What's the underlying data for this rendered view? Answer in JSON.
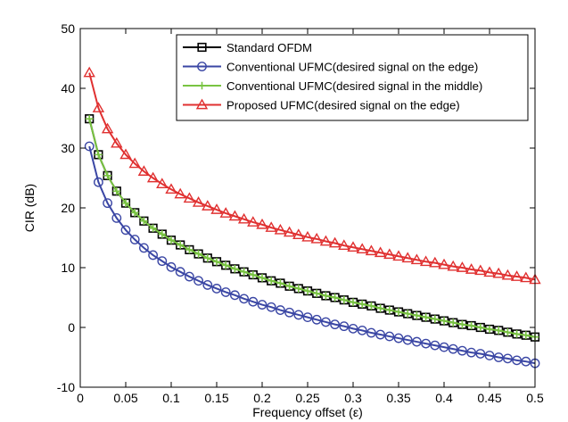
{
  "chart_data": {
    "type": "line",
    "title": "",
    "xlabel": "Frequency offset (ε)",
    "ylabel": "CIR (dB)",
    "xlim": [
      0,
      0.5
    ],
    "ylim": [
      -10,
      50
    ],
    "xticks": [
      0,
      0.05,
      0.1,
      0.15,
      0.2,
      0.25,
      0.3,
      0.35,
      0.4,
      0.45,
      0.5
    ],
    "xtick_labels": [
      "0",
      "0.05",
      "0.1",
      "0.15",
      "0.2",
      "0.25",
      "0.3",
      "0.35",
      "0.4",
      "0.45",
      "0.5"
    ],
    "yticks": [
      -10,
      0,
      10,
      20,
      30,
      40,
      50
    ],
    "ytick_labels": [
      "-10",
      "0",
      "10",
      "20",
      "30",
      "40",
      "50"
    ],
    "grid": false,
    "legend_position": "top-right",
    "x": [
      0.01,
      0.02,
      0.03,
      0.04,
      0.05,
      0.06,
      0.07,
      0.08,
      0.09,
      0.1,
      0.11,
      0.12,
      0.13,
      0.14,
      0.15,
      0.16,
      0.17,
      0.18,
      0.19,
      0.2,
      0.21,
      0.22,
      0.23,
      0.24,
      0.25,
      0.26,
      0.27,
      0.28,
      0.29,
      0.3,
      0.31,
      0.32,
      0.33,
      0.34,
      0.35,
      0.36,
      0.37,
      0.38,
      0.39,
      0.4,
      0.41,
      0.42,
      0.43,
      0.44,
      0.45,
      0.46,
      0.47,
      0.48,
      0.49,
      0.5
    ],
    "series": [
      {
        "name": "Standard OFDM",
        "color": "#000000",
        "marker": "square",
        "values": [
          34.9,
          28.9,
          25.4,
          22.8,
          20.8,
          19.2,
          17.8,
          16.6,
          15.6,
          14.6,
          13.8,
          13.0,
          12.3,
          11.6,
          11.0,
          10.4,
          9.8,
          9.3,
          8.8,
          8.3,
          7.8,
          7.4,
          6.9,
          6.5,
          6.1,
          5.7,
          5.3,
          5.0,
          4.6,
          4.2,
          3.9,
          3.6,
          3.2,
          2.9,
          2.6,
          2.3,
          2.0,
          1.7,
          1.4,
          1.1,
          0.8,
          0.5,
          0.3,
          0.0,
          -0.3,
          -0.5,
          -0.8,
          -1.1,
          -1.3,
          -1.6
        ]
      },
      {
        "name": "Conventional UFMC(desired signal on the edge)",
        "color": "#3a46a4",
        "marker": "circle",
        "values": [
          30.3,
          24.3,
          20.8,
          18.3,
          16.3,
          14.7,
          13.3,
          12.1,
          11.1,
          10.1,
          9.3,
          8.5,
          7.8,
          7.1,
          6.5,
          5.9,
          5.4,
          4.8,
          4.3,
          3.8,
          3.4,
          2.9,
          2.5,
          2.1,
          1.7,
          1.3,
          0.9,
          0.5,
          0.2,
          -0.2,
          -0.5,
          -0.9,
          -1.2,
          -1.5,
          -1.8,
          -2.1,
          -2.4,
          -2.7,
          -3.0,
          -3.3,
          -3.6,
          -3.9,
          -4.2,
          -4.4,
          -4.7,
          -5.0,
          -5.2,
          -5.5,
          -5.7,
          -6.0
        ]
      },
      {
        "name": "Conventional UFMC(desired signal in the middle)",
        "color": "#79c442",
        "marker": "plus",
        "values": [
          34.9,
          28.9,
          25.4,
          22.8,
          20.8,
          19.2,
          17.8,
          16.6,
          15.6,
          14.6,
          13.8,
          13.0,
          12.3,
          11.6,
          11.0,
          10.4,
          9.8,
          9.3,
          8.8,
          8.3,
          7.8,
          7.4,
          6.9,
          6.5,
          6.1,
          5.7,
          5.3,
          5.0,
          4.6,
          4.2,
          3.9,
          3.6,
          3.2,
          2.9,
          2.6,
          2.3,
          2.0,
          1.7,
          1.4,
          1.1,
          0.8,
          0.5,
          0.3,
          0.0,
          -0.3,
          -0.5,
          -0.8,
          -1.1,
          -1.3,
          -1.6
        ]
      },
      {
        "name": "Proposed UFMC(desired signal on the edge)",
        "color": "#e03030",
        "marker": "triangle",
        "values": [
          42.6,
          36.7,
          33.2,
          30.8,
          28.9,
          27.4,
          26.1,
          25.0,
          24.0,
          23.1,
          22.3,
          21.6,
          20.9,
          20.3,
          19.7,
          19.1,
          18.6,
          18.1,
          17.6,
          17.2,
          16.7,
          16.3,
          15.9,
          15.5,
          15.1,
          14.8,
          14.4,
          14.1,
          13.7,
          13.4,
          13.1,
          12.8,
          12.5,
          12.2,
          11.9,
          11.6,
          11.3,
          11.0,
          10.8,
          10.5,
          10.2,
          10.0,
          9.7,
          9.5,
          9.2,
          9.0,
          8.7,
          8.5,
          8.3,
          8.0
        ]
      }
    ]
  }
}
